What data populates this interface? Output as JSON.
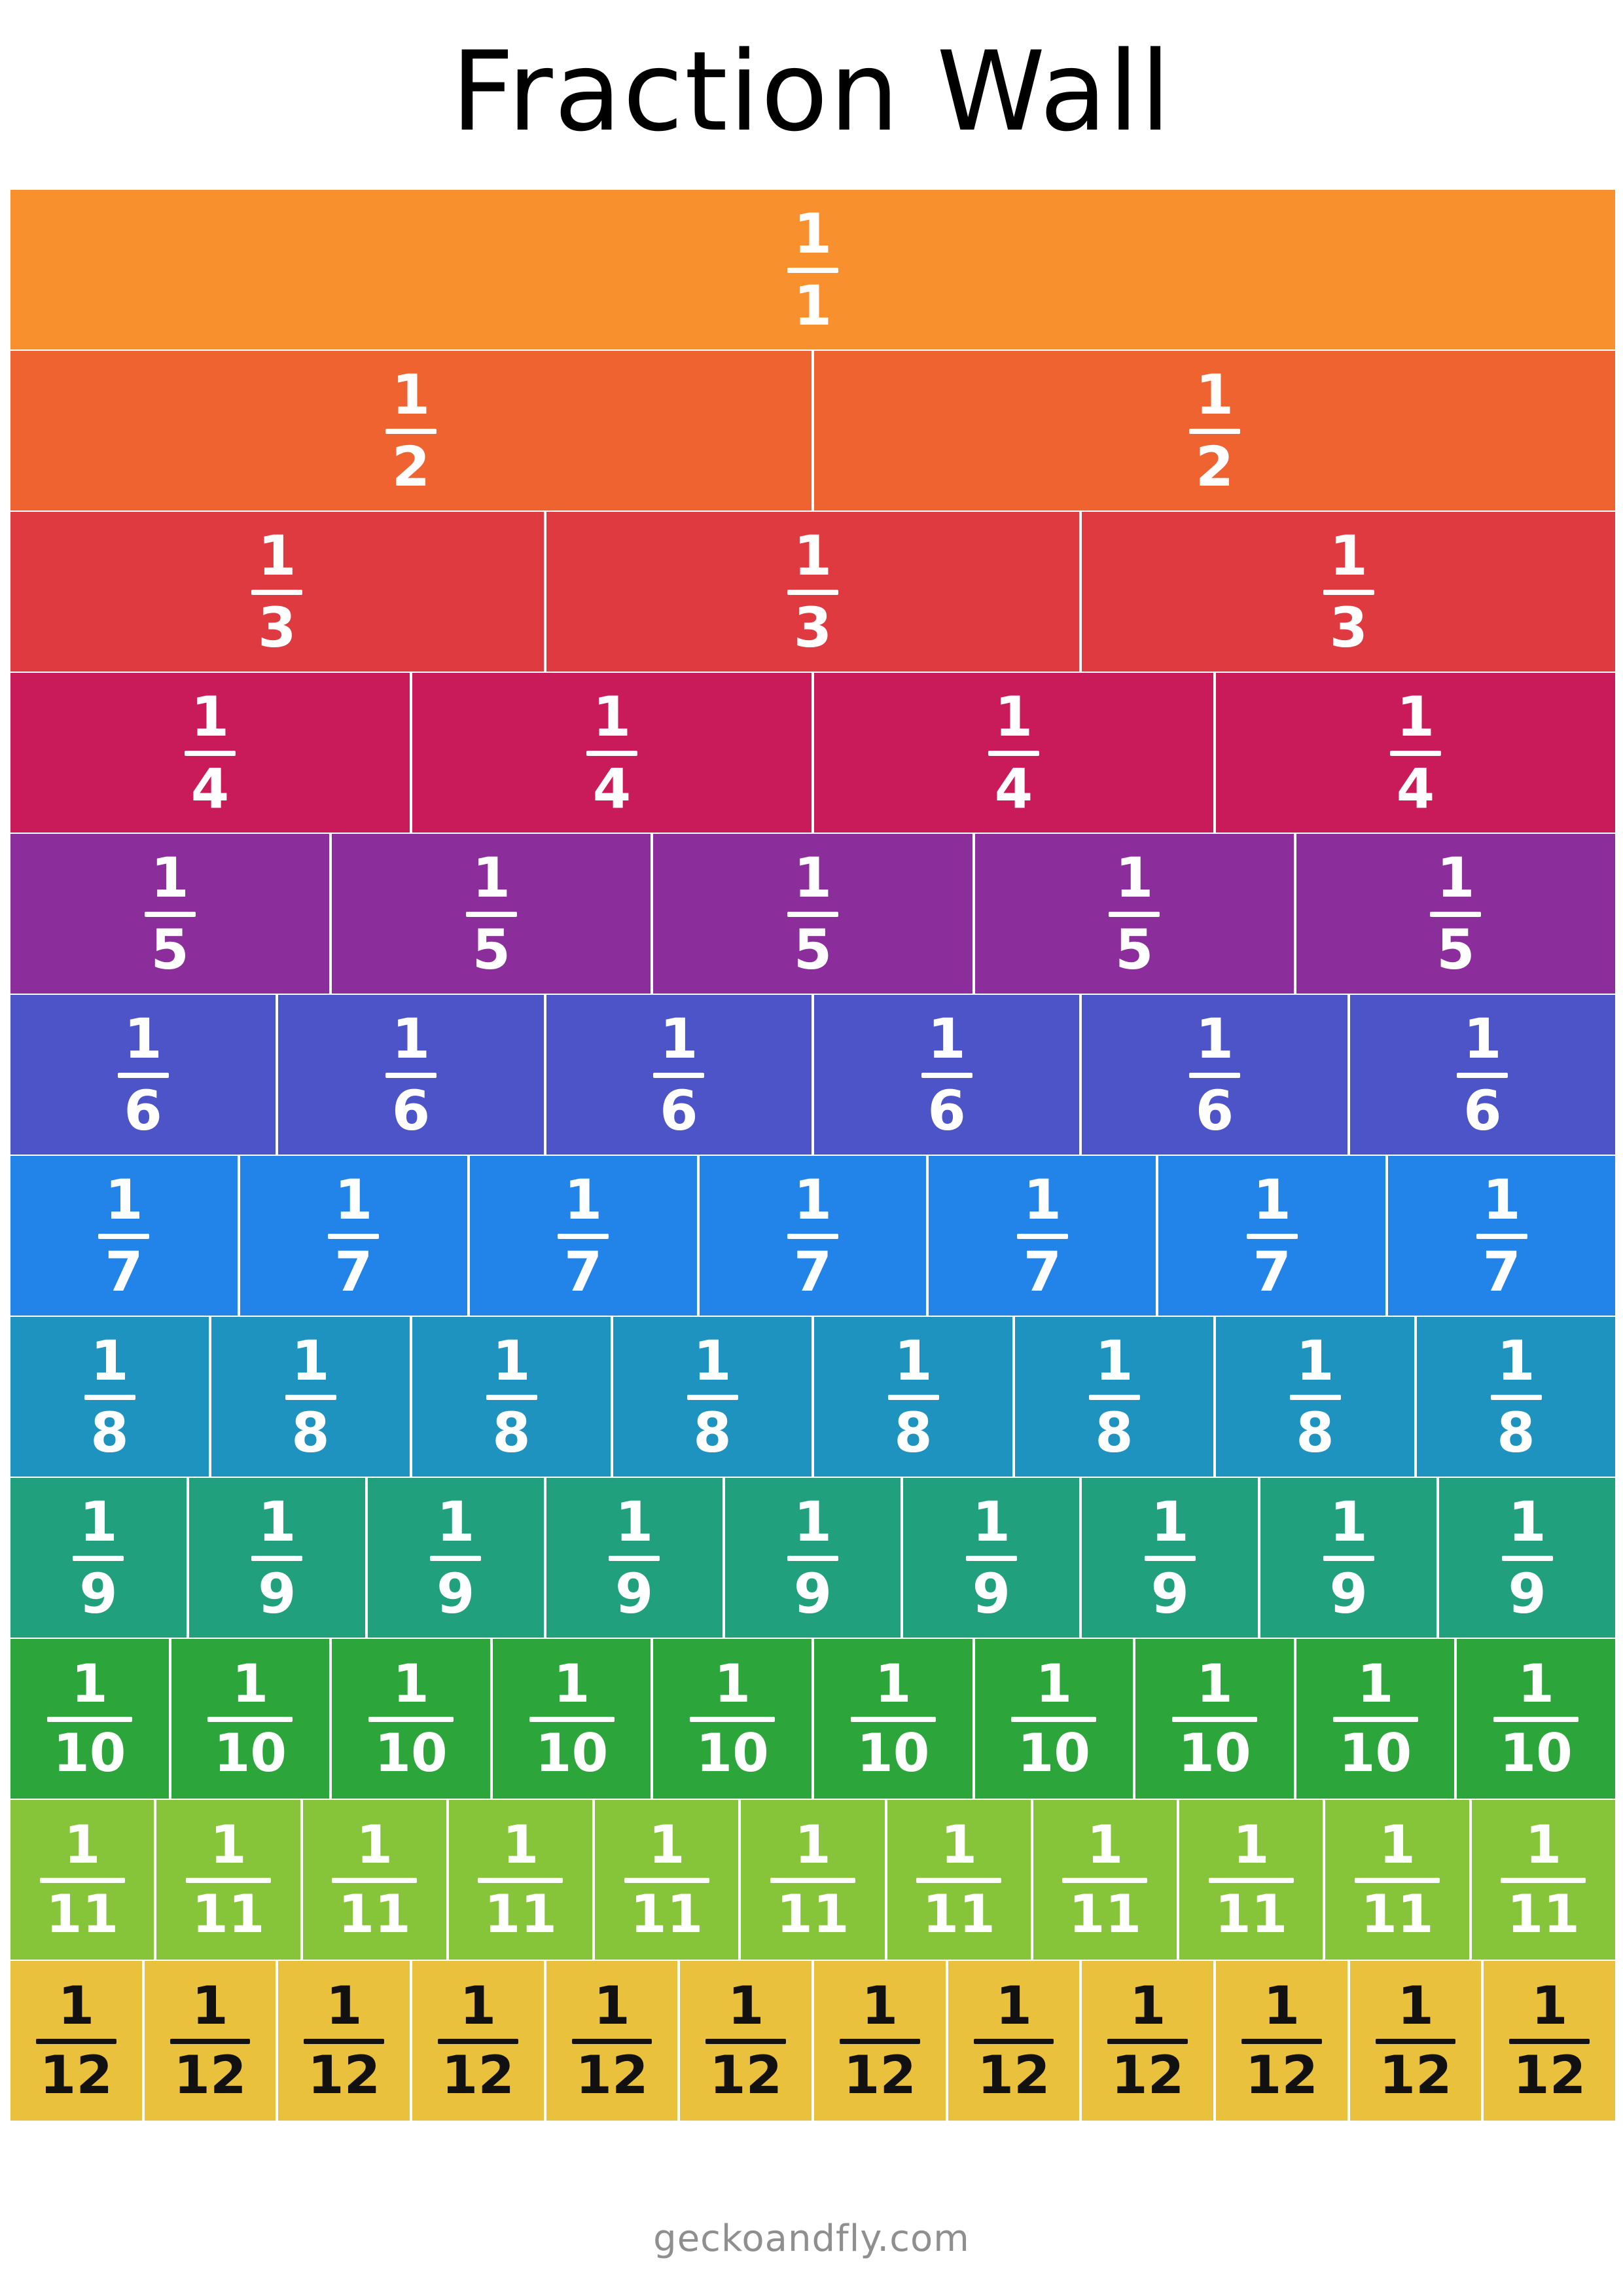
{
  "title": "Fraction Wall",
  "footer": "geckoandfly.com",
  "rows": [
    {
      "numerator": "1",
      "denominator": "1",
      "count": 1,
      "color": "#F8902E",
      "text_color": "#FFFFFF"
    },
    {
      "numerator": "1",
      "denominator": "2",
      "count": 2,
      "color": "#EE632F",
      "text_color": "#FFFFFF"
    },
    {
      "numerator": "1",
      "denominator": "3",
      "count": 3,
      "color": "#DF3A40",
      "text_color": "#FFFFFF"
    },
    {
      "numerator": "1",
      "denominator": "4",
      "count": 4,
      "color": "#C91B59",
      "text_color": "#FFFFFF"
    },
    {
      "numerator": "1",
      "denominator": "5",
      "count": 5,
      "color": "#8B2D9A",
      "text_color": "#FFFFFF"
    },
    {
      "numerator": "1",
      "denominator": "6",
      "count": 6,
      "color": "#4D54C8",
      "text_color": "#FFFFFF"
    },
    {
      "numerator": "1",
      "denominator": "7",
      "count": 7,
      "color": "#2284E9",
      "text_color": "#FFFFFF"
    },
    {
      "numerator": "1",
      "denominator": "8",
      "count": 8,
      "color": "#1E93BF",
      "text_color": "#FFFFFF"
    },
    {
      "numerator": "1",
      "denominator": "9",
      "count": 9,
      "color": "#20A07C",
      "text_color": "#FFFFFF"
    },
    {
      "numerator": "1",
      "denominator": "10",
      "count": 10,
      "color": "#2CA53A",
      "text_color": "#FFFFFF"
    },
    {
      "numerator": "1",
      "denominator": "11",
      "count": 11,
      "color": "#86C53A",
      "text_color": "#FFFFFF"
    },
    {
      "numerator": "1",
      "denominator": "12",
      "count": 12,
      "color": "#EAC13C",
      "text_color": "#111111"
    }
  ]
}
